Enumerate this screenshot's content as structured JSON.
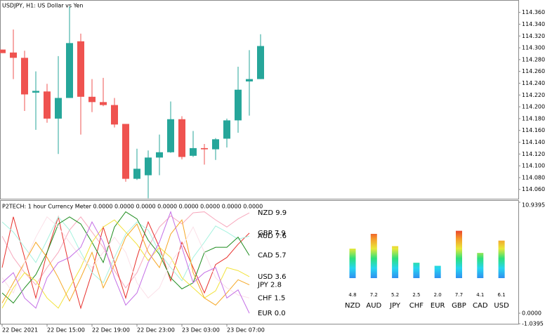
{
  "chart_data": [
    {
      "type": "candlestick",
      "title": "USDJPY, H1:  US Dollar vs Yen",
      "open": [
        114.297,
        114.292,
        114.283,
        114.224,
        114.226,
        114.18,
        114.215,
        114.311,
        114.217,
        114.208,
        114.203,
        114.171,
        114.078,
        114.084,
        114.114,
        114.123,
        114.179,
        114.117,
        114.13,
        114.128,
        114.146,
        114.177,
        114.243,
        114.247
      ],
      "high": [
        114.297,
        114.331,
        114.295,
        114.26,
        114.239,
        114.286,
        114.37,
        114.324,
        114.247,
        114.249,
        114.215,
        114.171,
        114.129,
        114.126,
        114.153,
        114.209,
        114.184,
        114.159,
        114.137,
        114.147,
        114.18,
        114.268,
        114.296,
        114.323
      ],
      "low": [
        114.291,
        114.247,
        114.193,
        114.161,
        114.173,
        114.12,
        114.215,
        114.153,
        114.191,
        114.201,
        114.165,
        114.073,
        114.076,
        114.045,
        114.084,
        114.122,
        114.111,
        114.115,
        114.102,
        114.11,
        114.131,
        114.156,
        114.185,
        114.247
      ],
      "close": [
        114.291,
        114.283,
        114.221,
        114.227,
        114.18,
        114.215,
        114.308,
        114.217,
        114.208,
        114.203,
        114.17,
        114.078,
        114.095,
        114.114,
        114.123,
        114.179,
        114.115,
        114.13,
        114.128,
        114.145,
        114.177,
        114.229,
        114.247,
        114.303
      ],
      "up_color": "#26a69a",
      "down_color": "#ef5350",
      "ylim": [
        114.043,
        114.381
      ],
      "yticks": [
        {
          "value": 114.36,
          "label": "114.360"
        },
        {
          "value": 114.34,
          "label": "114.340"
        },
        {
          "value": 114.32,
          "label": "114.320"
        },
        {
          "value": 114.3,
          "label": "114.300"
        },
        {
          "value": 114.28,
          "label": "114.280"
        },
        {
          "value": 114.26,
          "label": "114.260"
        },
        {
          "value": 114.24,
          "label": "114.240"
        },
        {
          "value": 114.22,
          "label": "114.220"
        },
        {
          "value": 114.2,
          "label": "114.200"
        },
        {
          "value": 114.18,
          "label": "114.180"
        },
        {
          "value": 114.16,
          "label": "114.160"
        },
        {
          "value": 114.14,
          "label": "114.140"
        },
        {
          "value": 114.12,
          "label": "114.120"
        },
        {
          "value": 114.1,
          "label": "114.100"
        },
        {
          "value": 114.08,
          "label": "114.080"
        },
        {
          "value": 114.06,
          "label": "114.060"
        }
      ]
    },
    {
      "type": "line",
      "title": "P2TECH: 1 hour Currency Meter 0.0000 0.0000 0.0000 0.0000 0.0000 0.0000 0.0000 0.0000",
      "categories": [
        "22 Dec 2021",
        null,
        null,
        null,
        "22 Dec 15:00",
        null,
        null,
        null,
        "22 Dec 19:00",
        null,
        null,
        null,
        "22 Dec 23:00",
        null,
        null,
        null,
        "23 Dec 03:00",
        null,
        null,
        null,
        "23 Dec 07:00",
        null,
        null,
        null
      ],
      "series": [
        {
          "name": "NZD 9.9",
          "color": "#f7a9bd",
          "values": [
            7.6,
            5.5,
            4.0,
            2.8,
            4.5,
            6.0,
            8.2,
            9.5,
            8.0,
            6.5,
            4.2,
            2.5,
            4.0,
            6.5,
            8.5,
            9.6,
            8.8,
            9.9,
            10.0,
            9.2,
            8.5,
            9.3,
            9.9,
            null
          ]
        },
        {
          "name": "GBP 7.9",
          "color": "#e8322e",
          "values": [
            4.5,
            9.5,
            5.5,
            1.5,
            6.0,
            9.5,
            4.5,
            0.5,
            4.0,
            8.5,
            5.0,
            1.5,
            5.5,
            9.0,
            6.5,
            3.2,
            7.0,
            4.5,
            2.0,
            4.8,
            5.5,
            6.8,
            7.9,
            null
          ]
        },
        {
          "name": "AUD 7.6",
          "color": "#a6f2df",
          "values": [
            9.0,
            8.0,
            6.5,
            5.0,
            7.2,
            9.5,
            8.2,
            6.0,
            4.0,
            3.0,
            5.5,
            7.8,
            9.0,
            8.2,
            6.0,
            4.5,
            3.2,
            5.5,
            7.0,
            8.6,
            8.0,
            7.3,
            7.6,
            null
          ]
        },
        {
          "name": "CAD 5.7",
          "color": "#1e8c1e",
          "values": [
            2.0,
            1.0,
            2.5,
            3.8,
            6.0,
            8.8,
            9.5,
            8.8,
            7.0,
            5.0,
            8.5,
            10.0,
            9.3,
            7.2,
            5.8,
            3.5,
            2.4,
            3.0,
            6.0,
            6.5,
            6.5,
            7.5,
            5.7,
            null
          ]
        },
        {
          "name": "USD 3.6",
          "color": "#f2e23a",
          "values": [
            0.5,
            2.5,
            4.0,
            3.2,
            1.5,
            0.5,
            2.5,
            4.5,
            7.0,
            8.5,
            9.2,
            8.0,
            6.8,
            5.2,
            6.5,
            5.5,
            3.5,
            2.5,
            1.5,
            2.2,
            4.5,
            4.2,
            3.6,
            null
          ]
        },
        {
          "name": "JPY 2.8",
          "color": "#f5a623",
          "values": [
            1.0,
            3.0,
            5.0,
            7.0,
            5.5,
            3.5,
            1.2,
            3.5,
            6.0,
            2.5,
            4.8,
            7.5,
            8.8,
            6.0,
            4.5,
            7.8,
            9.2,
            4.0,
            1.5,
            0.8,
            2.0,
            3.3,
            2.8,
            null
          ]
        },
        {
          "name": "CHF 1.5",
          "color": "#fbe0e8",
          "values": [
            3.5,
            2.0,
            5.0,
            7.5,
            9.5,
            8.5,
            7.0,
            5.5,
            4.5,
            6.0,
            7.5,
            6.0,
            3.0,
            1.5,
            2.5,
            5.0,
            6.5,
            8.5,
            6.0,
            3.5,
            2.5,
            1.8,
            1.5,
            null
          ]
        },
        {
          "name": "EUR 0.0",
          "color": "#c46fe6",
          "values": [
            3.0,
            4.0,
            1.5,
            0.5,
            3.5,
            5.0,
            5.5,
            6.5,
            9.0,
            7.0,
            3.5,
            0.8,
            2.0,
            5.0,
            7.0,
            10.0,
            6.5,
            3.0,
            4.0,
            4.5,
            1.5,
            2.3,
            0.0,
            null
          ]
        }
      ],
      "ylim": [
        -1.0395,
        10.9395
      ],
      "yticks": [
        {
          "value": 10.9395,
          "label": "10.9395"
        },
        {
          "value": 0,
          "label": "0.0000"
        },
        {
          "value": -1.0395,
          "label": "-1.0395"
        }
      ]
    },
    {
      "type": "bar",
      "categories": [
        "NZD",
        "AUD",
        "JPY",
        "CHF",
        "EUR",
        "GBP",
        "CAD",
        "USD"
      ],
      "values": [
        4.8,
        7.2,
        5.2,
        2.5,
        2.0,
        7.7,
        4.1,
        6.1
      ],
      "value_labels": [
        "4.8",
        "7.2",
        "5.2",
        "2.5",
        "2.0",
        "7.7",
        "4.1",
        "6.1"
      ],
      "label_colors": [
        "#f7a9bd",
        "#a6f2df",
        "#f5a623",
        "#fbe0e8",
        "#c46fe6",
        "#e8322e",
        "#1e8c1e",
        "#f2e23a"
      ],
      "gradient": [
        "#2f8ff0",
        "#26d6f0",
        "#2ee07a",
        "#e8e838",
        "#f59a2a",
        "#e8322e"
      ]
    }
  ]
}
